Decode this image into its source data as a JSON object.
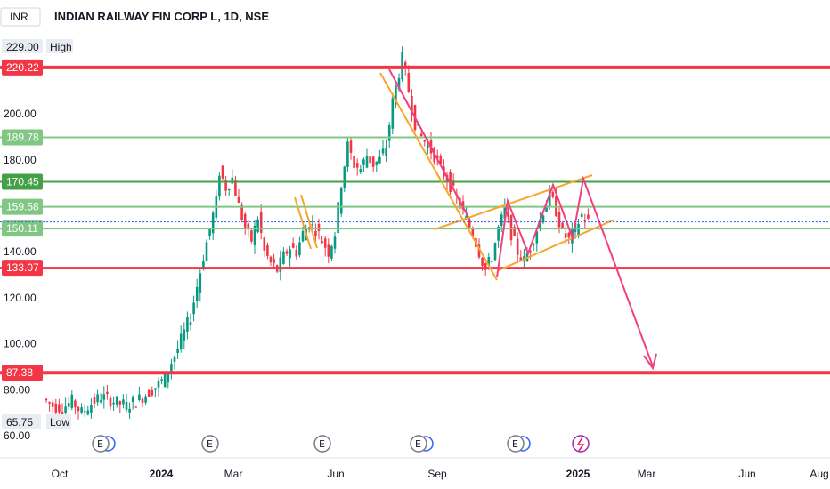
{
  "header": {
    "currency": "INR",
    "title": "INDIAN RAILWAY FIN CORP L, 1D, NSE"
  },
  "chart_data": {
    "type": "candlestick",
    "ylim": [
      58,
      232
    ],
    "yticks": [
      60,
      80,
      100,
      120,
      140,
      180,
      200
    ],
    "ytick_labels": [
      "60.00",
      "80.00",
      "100.00",
      "120.00",
      "140.00",
      "180.00",
      "200.00"
    ],
    "xticks": [
      {
        "label": "Oct",
        "bold": false
      },
      {
        "label": "2024",
        "bold": true
      },
      {
        "label": "Mar",
        "bold": false
      },
      {
        "label": "Jun",
        "bold": false
      },
      {
        "label": "Sep",
        "bold": false
      },
      {
        "label": "2025",
        "bold": true
      },
      {
        "label": "Mar",
        "bold": false
      },
      {
        "label": "Jun",
        "bold": false
      },
      {
        "label": "Aug",
        "bold": false
      }
    ],
    "high": {
      "value": "229.00",
      "label": "High"
    },
    "low": {
      "value": "65.75",
      "label": "Low"
    },
    "levels": [
      {
        "value": 220.22,
        "label": "220.22",
        "color": "#f23645",
        "width": 4
      },
      {
        "value": 189.78,
        "label": "189.78",
        "color": "#81c784",
        "width": 2
      },
      {
        "value": 170.45,
        "label": "170.45",
        "color": "#43a047",
        "width": 2
      },
      {
        "value": 159.58,
        "label": "159.58",
        "color": "#81c784",
        "width": 2
      },
      {
        "value": 150.11,
        "label": "150.11",
        "color": "#81c784",
        "width": 2
      },
      {
        "value": 133.07,
        "label": "133.07",
        "color": "#f23645",
        "width": 2
      },
      {
        "value": 87.38,
        "label": "87.38",
        "color": "#f23645",
        "width": 4
      }
    ],
    "last_price": 153,
    "events": [
      "E",
      "E",
      "E",
      "E",
      "E"
    ],
    "price_path": [
      [
        0,
        76
      ],
      [
        3,
        73
      ],
      [
        6,
        72
      ],
      [
        9,
        75
      ],
      [
        12,
        70
      ],
      [
        15,
        74
      ],
      [
        18,
        77
      ],
      [
        22,
        75
      ],
      [
        26,
        73
      ],
      [
        30,
        76
      ],
      [
        34,
        80
      ],
      [
        38,
        85
      ],
      [
        40,
        92
      ],
      [
        42,
        98
      ],
      [
        44,
        105
      ],
      [
        46,
        112
      ],
      [
        48,
        125
      ],
      [
        50,
        138
      ],
      [
        52,
        150
      ],
      [
        54,
        162
      ],
      [
        55,
        175
      ],
      [
        57,
        168
      ],
      [
        59,
        172
      ],
      [
        61,
        160
      ],
      [
        63,
        150
      ],
      [
        65,
        145
      ],
      [
        67,
        155
      ],
      [
        69,
        140
      ],
      [
        71,
        135
      ],
      [
        73,
        132
      ],
      [
        75,
        138
      ],
      [
        77,
        142
      ],
      [
        79,
        140
      ],
      [
        81,
        148
      ],
      [
        83,
        152
      ],
      [
        85,
        150
      ],
      [
        87,
        145
      ],
      [
        89,
        140
      ],
      [
        91,
        148
      ],
      [
        93,
        170
      ],
      [
        95,
        186
      ],
      [
        97,
        178
      ],
      [
        99,
        176
      ],
      [
        101,
        182
      ],
      [
        103,
        178
      ],
      [
        105,
        180
      ],
      [
        107,
        186
      ],
      [
        109,
        205
      ],
      [
        111,
        218
      ],
      [
        112,
        224
      ],
      [
        114,
        210
      ],
      [
        116,
        196
      ],
      [
        118,
        190
      ],
      [
        120,
        186
      ],
      [
        122,
        182
      ],
      [
        124,
        176
      ],
      [
        126,
        172
      ],
      [
        128,
        166
      ],
      [
        130,
        160
      ],
      [
        132,
        154
      ],
      [
        134,
        148
      ],
      [
        136,
        140
      ],
      [
        138,
        132
      ],
      [
        140,
        138
      ],
      [
        142,
        150
      ],
      [
        144,
        158
      ],
      [
        146,
        148
      ],
      [
        148,
        140
      ],
      [
        150,
        136
      ],
      [
        152,
        142
      ],
      [
        154,
        150
      ],
      [
        156,
        158
      ],
      [
        158,
        165
      ],
      [
        160,
        158
      ],
      [
        162,
        148
      ],
      [
        164,
        145
      ],
      [
        166,
        150
      ],
      [
        168,
        156
      ],
      [
        170,
        153
      ]
    ]
  }
}
